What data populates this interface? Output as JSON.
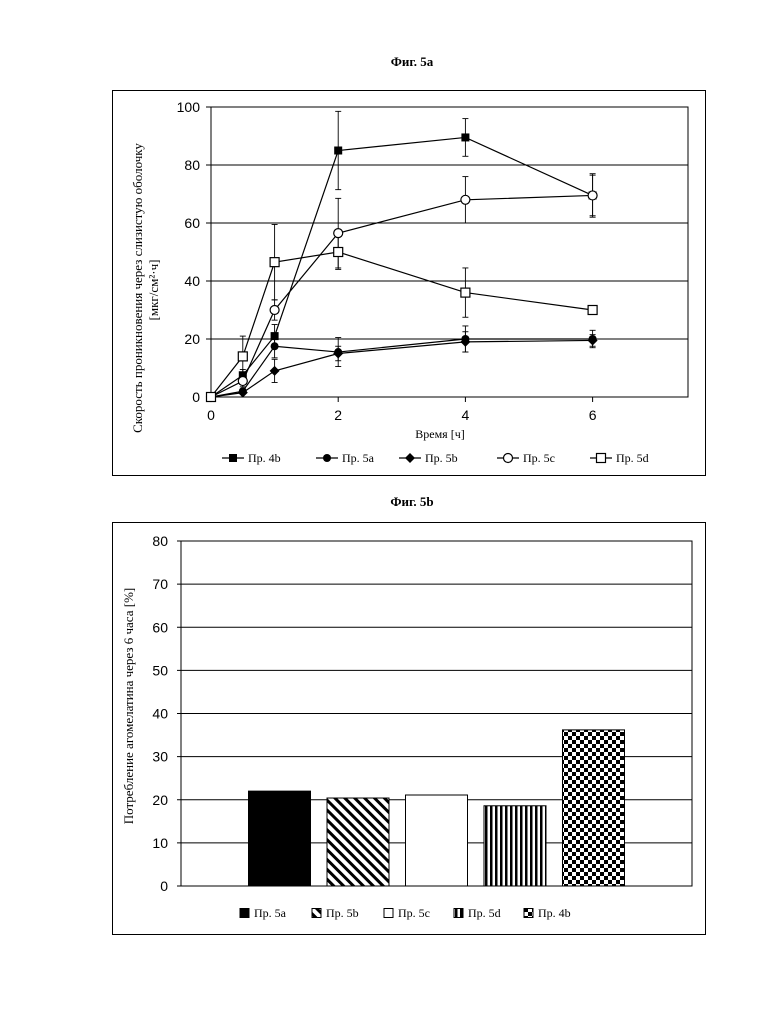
{
  "chart_data": [
    {
      "type": "line",
      "title": "Фиг. 5a",
      "xlabel": "Время [ч]",
      "ylabel": "Скорость проникновения через слизистую оболочку",
      "ylabel_unit": "[мкг/см²·ч]",
      "xlim": [
        0,
        7.5
      ],
      "ylim": [
        0,
        100
      ],
      "xticks": [
        0,
        2,
        4,
        6
      ],
      "yticks": [
        0,
        20,
        40,
        60,
        80,
        100
      ],
      "grid": "horizontal",
      "legend": "bottom",
      "color": "#000000",
      "x": [
        0,
        0.5,
        1,
        2,
        4,
        6
      ],
      "series": [
        {
          "name": "Пр. 4b",
          "marker": "filled-square",
          "values": [
            0,
            7.5,
            21,
            85,
            89.5,
            69.5
          ],
          "yerr": [
            0,
            2,
            4,
            13.5,
            6.5,
            7.5
          ]
        },
        {
          "name": "Пр. 5a",
          "marker": "filled-circle",
          "values": [
            0,
            2,
            17.5,
            15.5,
            20,
            20
          ],
          "yerr": [
            0,
            0.5,
            4,
            5,
            4.5,
            3
          ]
        },
        {
          "name": "Пр. 5b",
          "marker": "filled-diamond",
          "values": [
            0,
            1.5,
            9,
            15,
            19,
            19.5
          ],
          "yerr": [
            0,
            0.5,
            4,
            2.5,
            3.5,
            2
          ]
        },
        {
          "name": "Пр. 5c",
          "marker": "open-circle",
          "values": [
            0,
            5.5,
            30,
            56.5,
            68,
            69.5
          ],
          "yerr": [
            0,
            2,
            3.5,
            12,
            8,
            7
          ]
        },
        {
          "name": "Пр. 5d",
          "marker": "open-square",
          "values": [
            0,
            14,
            46.5,
            50,
            36,
            30
          ],
          "yerr": [
            0,
            7,
            13,
            6,
            8.5,
            1
          ]
        }
      ]
    },
    {
      "type": "bar",
      "title": "Фиг. 5b",
      "ylabel": "Потребление агомелатина через 6 часа [%]",
      "ylim": [
        0,
        80
      ],
      "yticks": [
        0,
        10,
        20,
        30,
        40,
        50,
        60,
        70,
        80
      ],
      "grid": "horizontal",
      "legend": "bottom",
      "color": "#000000",
      "series": [
        {
          "name": "Пр. 5a",
          "pattern": "solid",
          "values": [
            22.0
          ]
        },
        {
          "name": "Пр. 5b",
          "pattern": "diagonal-stripes",
          "values": [
            20.4
          ]
        },
        {
          "name": "Пр. 5c",
          "pattern": "none",
          "values": [
            21.1
          ]
        },
        {
          "name": "Пр. 5d",
          "pattern": "vertical-stripes",
          "values": [
            18.6
          ]
        },
        {
          "name": "Пр. 4b",
          "pattern": "checkered",
          "values": [
            36.2
          ]
        }
      ]
    }
  ]
}
